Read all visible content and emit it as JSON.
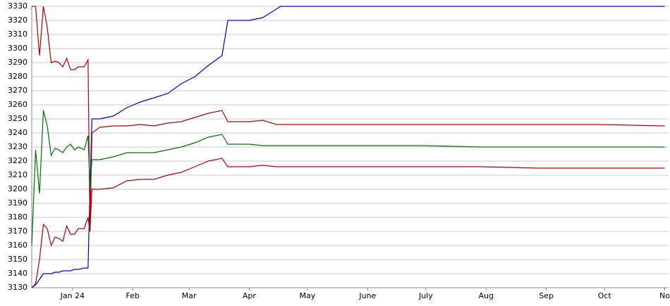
{
  "chart_data": {
    "type": "line",
    "x": [
      -21,
      -19,
      -17,
      -15,
      -13,
      -11,
      -9,
      -7,
      -5,
      -3,
      -1,
      1,
      3,
      6,
      8,
      9,
      10,
      14,
      21,
      28,
      35,
      42,
      49,
      56,
      63,
      70,
      77,
      80,
      91,
      98,
      105,
      107,
      120,
      150,
      180,
      210,
      240,
      270,
      305
    ],
    "series": [
      {
        "color": "#0000c0",
        "values": [
          3130,
          3132,
          3136,
          3140,
          3140,
          3140,
          3141,
          3141,
          3142,
          3142,
          3142,
          3143,
          3143,
          3144,
          3144,
          3200,
          3250,
          3250,
          3252,
          3258,
          3262,
          3265,
          3268,
          3275,
          3280,
          3288,
          3295,
          3320,
          3320,
          3322,
          3328,
          3330,
          3330,
          3330,
          3330,
          3330,
          3330,
          3330,
          3330
        ]
      },
      {
        "color": "#b00000",
        "values": [
          3330,
          3330,
          3295,
          3330,
          3315,
          3290,
          3291,
          3290,
          3287,
          3293,
          3285,
          3285,
          3287,
          3287,
          3292,
          3170,
          3240,
          3244,
          3245,
          3245,
          3246,
          3245,
          3247,
          3248,
          3251,
          3254,
          3256,
          3248,
          3248,
          3249,
          3246,
          3246,
          3246,
          3246,
          3246,
          3246,
          3246,
          3246,
          3245
        ]
      },
      {
        "color": "#007000",
        "values": [
          3160,
          3228,
          3197,
          3256,
          3245,
          3224,
          3229,
          3228,
          3226,
          3230,
          3232,
          3228,
          3230,
          3228,
          3238,
          3200,
          3221,
          3221,
          3223,
          3226,
          3226,
          3226,
          3228,
          3230,
          3233,
          3237,
          3239,
          3232,
          3232,
          3231,
          3231,
          3231,
          3231,
          3231,
          3231,
          3230,
          3230,
          3230,
          3230
        ]
      },
      {
        "color": "#b00000",
        "values": [
          3130,
          3133,
          3150,
          3175,
          3172,
          3160,
          3166,
          3165,
          3163,
          3174,
          3168,
          3168,
          3172,
          3172,
          3180,
          3170,
          3200,
          3200,
          3201,
          3206,
          3207,
          3207,
          3210,
          3212,
          3216,
          3220,
          3222,
          3216,
          3216,
          3217,
          3216,
          3216,
          3216,
          3216,
          3216,
          3216,
          3215,
          3215,
          3215
        ]
      }
    ],
    "xlim": [
      -21,
      307
    ],
    "xticks": [
      {
        "value": 0,
        "label": "Jan 24"
      },
      {
        "value": 31,
        "label": "Feb"
      },
      {
        "value": 60,
        "label": "Mar"
      },
      {
        "value": 91,
        "label": "Apr"
      },
      {
        "value": 121,
        "label": "May"
      },
      {
        "value": 152,
        "label": "June"
      },
      {
        "value": 182,
        "label": "July"
      },
      {
        "value": 213,
        "label": "Aug"
      },
      {
        "value": 244,
        "label": "Sep"
      },
      {
        "value": 274,
        "label": "Oct"
      },
      {
        "value": 305,
        "label": "No"
      }
    ],
    "ylim": [
      3130,
      3330
    ],
    "yticks": [
      3130,
      3140,
      3150,
      3160,
      3170,
      3180,
      3190,
      3200,
      3210,
      3220,
      3230,
      3240,
      3250,
      3260,
      3270,
      3280,
      3290,
      3300,
      3310,
      3320,
      3330
    ],
    "grid": true
  }
}
